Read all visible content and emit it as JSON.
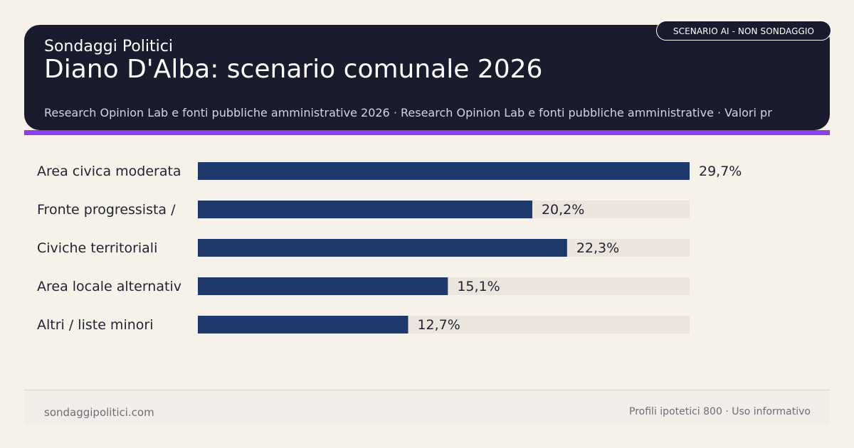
{
  "header": {
    "kicker": "Sondaggi Politici",
    "title": "Diano D'Alba: scenario comunale 2026",
    "source": "Research Opinion Lab e fonti pubbliche amministrative 2026 · Research Opinion Lab e fonti pubbliche amministrative · Valori pr",
    "badge": "SCENARIO AI - NON SONDAGGIO"
  },
  "colors": {
    "header_bg": "#1b1b2e",
    "accent": "#8b3fe4",
    "bar": "#1e3a6b",
    "track": "#ebe5de",
    "page_bg": "#f6f2ea"
  },
  "chart_data": {
    "type": "bar",
    "orientation": "horizontal",
    "categories": [
      "Area civica moderata",
      "Fronte progressista /",
      "Civiche territoriali",
      "Area locale alternativ",
      "Altri / liste minori"
    ],
    "values": [
      29.7,
      20.2,
      22.3,
      15.1,
      12.7
    ],
    "value_labels": [
      "29,7%",
      "20,2%",
      "22,3%",
      "15,1%",
      "12,7%"
    ],
    "xlim": [
      0,
      29.7
    ],
    "grid": false,
    "title": ""
  },
  "footer": {
    "site": "sondaggipolitici.com",
    "note": "Profili ipotetici 800 · Uso informativo"
  }
}
